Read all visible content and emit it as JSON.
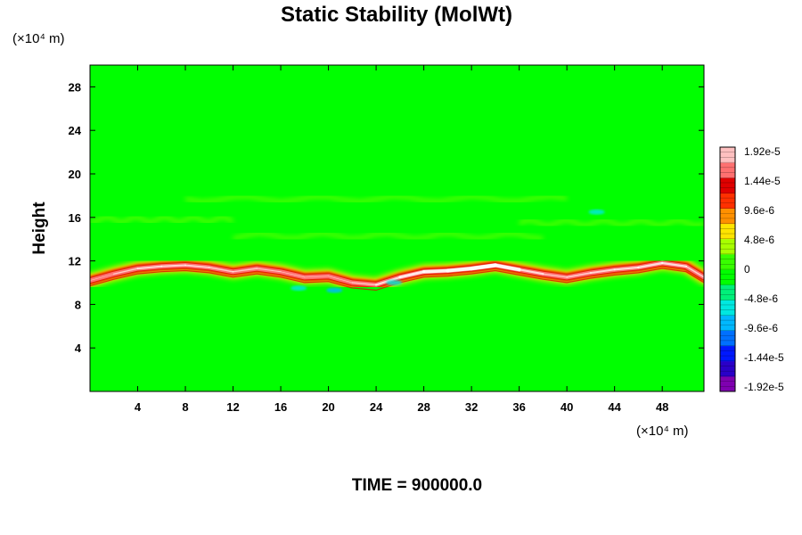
{
  "chart_data": {
    "type": "heatmap",
    "title": "Static Stability (MolWt)",
    "ylabel": "Height",
    "x_unit": "(×10⁴ m)",
    "y_unit": "(×10⁴ m)",
    "xlim": [
      0,
      51.5
    ],
    "ylim": [
      0,
      30
    ],
    "x_ticks": [
      "4",
      "8",
      "12",
      "16",
      "20",
      "24",
      "28",
      "32",
      "36",
      "40",
      "44",
      "48"
    ],
    "y_ticks": [
      "4",
      "8",
      "12",
      "16",
      "20",
      "24",
      "28"
    ],
    "grid": false,
    "background_value": 0,
    "colorbar": {
      "position": "right",
      "range": [
        -1.92e-05,
        1.92e-05
      ],
      "labels": [
        "1.92e-5",
        "1.44e-5",
        "9.6e-6",
        "4.8e-6",
        "0",
        "-4.8e-6",
        "-9.6e-6",
        "-1.44e-5",
        "-1.92e-5"
      ],
      "colors_low_to_high": [
        "#7f00b0",
        "#2a00c8",
        "#0018ff",
        "#0070ff",
        "#00b8ff",
        "#00e8e0",
        "#00f07a",
        "#00ff00",
        "#38ff00",
        "#a8ff00",
        "#ffe400",
        "#ff9000",
        "#ff3000",
        "#e00000",
        "#ff7070",
        "#ffc0c0"
      ]
    },
    "features": {
      "stable_layer_height": [
        {
          "x": 0.0,
          "y": 10.2
        },
        {
          "x": 2.0,
          "y": 10.8
        },
        {
          "x": 4.0,
          "y": 11.3
        },
        {
          "x": 6.0,
          "y": 11.5
        },
        {
          "x": 8.0,
          "y": 11.6
        },
        {
          "x": 10.0,
          "y": 11.4
        },
        {
          "x": 12.0,
          "y": 11.0
        },
        {
          "x": 14.0,
          "y": 11.3
        },
        {
          "x": 16.0,
          "y": 11.0
        },
        {
          "x": 18.0,
          "y": 10.5
        },
        {
          "x": 20.0,
          "y": 10.6
        },
        {
          "x": 22.0,
          "y": 10.0
        },
        {
          "x": 24.0,
          "y": 9.8
        },
        {
          "x": 26.0,
          "y": 10.5
        },
        {
          "x": 28.0,
          "y": 11.0
        },
        {
          "x": 30.0,
          "y": 11.1
        },
        {
          "x": 32.0,
          "y": 11.3
        },
        {
          "x": 34.0,
          "y": 11.6
        },
        {
          "x": 36.0,
          "y": 11.2
        },
        {
          "x": 38.0,
          "y": 10.8
        },
        {
          "x": 40.0,
          "y": 10.5
        },
        {
          "x": 42.0,
          "y": 10.9
        },
        {
          "x": 44.0,
          "y": 11.2
        },
        {
          "x": 46.0,
          "y": 11.4
        },
        {
          "x": 48.0,
          "y": 11.8
        },
        {
          "x": 50.0,
          "y": 11.5
        },
        {
          "x": 51.5,
          "y": 10.5
        }
      ],
      "stable_layer_peak": [
        {
          "x": 0.0,
          "y": 0.45
        },
        {
          "x": 2.0,
          "y": 0.6
        },
        {
          "x": 4.0,
          "y": 0.7
        },
        {
          "x": 6.0,
          "y": 0.72
        },
        {
          "x": 8.0,
          "y": 0.7
        },
        {
          "x": 10.0,
          "y": 0.68
        },
        {
          "x": 12.0,
          "y": 0.62
        },
        {
          "x": 14.0,
          "y": 0.66
        },
        {
          "x": 16.0,
          "y": 0.56
        },
        {
          "x": 18.0,
          "y": 0.6
        },
        {
          "x": 20.0,
          "y": 0.55
        },
        {
          "x": 22.0,
          "y": 0.6
        },
        {
          "x": 24.0,
          "y": 0.7
        },
        {
          "x": 26.0,
          "y": 0.8
        },
        {
          "x": 28.0,
          "y": 0.88
        },
        {
          "x": 30.0,
          "y": 0.92
        },
        {
          "x": 32.0,
          "y": 0.96
        },
        {
          "x": 34.0,
          "y": 1.0
        },
        {
          "x": 36.0,
          "y": 0.86
        },
        {
          "x": 38.0,
          "y": 0.62
        },
        {
          "x": 40.0,
          "y": 0.64
        },
        {
          "x": 42.0,
          "y": 0.7
        },
        {
          "x": 44.0,
          "y": 0.72
        },
        {
          "x": 46.0,
          "y": 0.74
        },
        {
          "x": 48.0,
          "y": 0.78
        },
        {
          "x": 50.0,
          "y": 0.72
        },
        {
          "x": 51.5,
          "y": 0.6
        }
      ],
      "unstable_spots": [
        {
          "x": 42.5,
          "y": 16.5,
          "value": -7e-06
        },
        {
          "x": 17.5,
          "y": 9.5,
          "value": -6e-06
        },
        {
          "x": 20.5,
          "y": 9.3,
          "value": -8e-06
        },
        {
          "x": 25.5,
          "y": 10.0,
          "value": -5e-06
        }
      ],
      "weak_stable_bands": [
        {
          "x0": 8,
          "x1": 40,
          "y": 17.7,
          "value": 4.5e-06
        },
        {
          "x0": 0,
          "x1": 12,
          "y": 15.8,
          "value": 3e-06
        },
        {
          "x0": 12,
          "x1": 38,
          "y": 14.3,
          "value": 3e-06
        },
        {
          "x0": 36,
          "x1": 51.5,
          "y": 15.5,
          "value": 3.5e-06
        }
      ]
    }
  },
  "footer": {
    "time_label": "TIME = 900000.0"
  }
}
